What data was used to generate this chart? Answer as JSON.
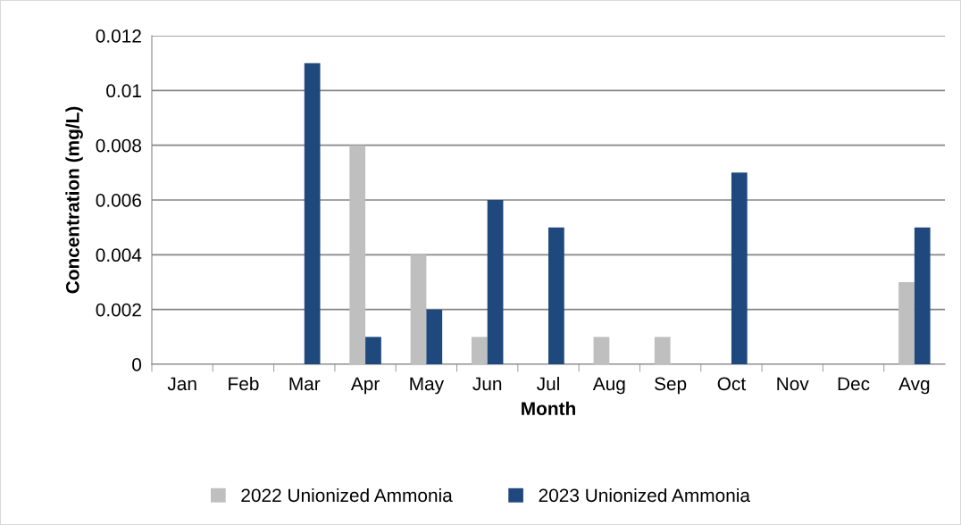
{
  "chart_data": {
    "type": "bar",
    "xlabel": "Month",
    "ylabel": "Concentration (mg/L)",
    "categories": [
      "Jan",
      "Feb",
      "Mar",
      "Apr",
      "May",
      "Jun",
      "Jul",
      "Aug",
      "Sep",
      "Oct",
      "Nov",
      "Dec",
      "Avg"
    ],
    "series": [
      {
        "name": "2022 Unionized Ammonia",
        "color": "#bfbfbf",
        "values": [
          null,
          null,
          null,
          0.008,
          0.004,
          0.001,
          null,
          0.001,
          0.001,
          null,
          null,
          null,
          0.003
        ]
      },
      {
        "name": "2023 Unionized Ammonia",
        "color": "#1f497d",
        "values": [
          null,
          null,
          0.011,
          0.001,
          0.002,
          0.006,
          0.005,
          null,
          null,
          0.007,
          null,
          null,
          0.005
        ]
      }
    ],
    "ylim": [
      0,
      0.012
    ],
    "yticks": [
      {
        "value": 0,
        "label": "0"
      },
      0.002,
      0.004,
      0.006,
      0.008,
      0.01,
      0.012
    ],
    "grid": "y",
    "legend": "bottom"
  }
}
